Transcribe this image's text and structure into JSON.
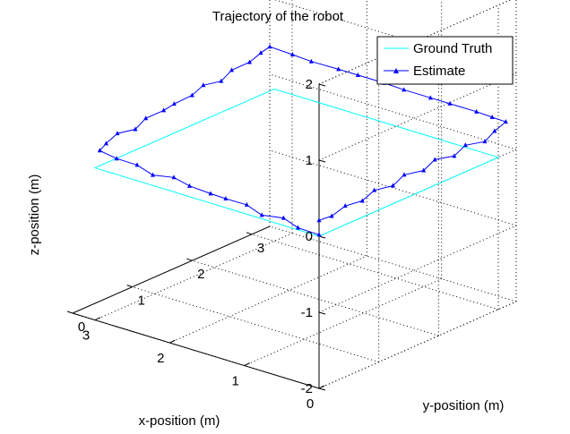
{
  "chart_data": {
    "type": "line",
    "projection": "3d",
    "title": "Trajectory of the robot",
    "xlabel": "x-position (m)",
    "ylabel": "y-position (m)",
    "zlabel": "z-position (m)",
    "xlim": [
      0,
      3.3
    ],
    "ylim": [
      0,
      3.3
    ],
    "zlim": [
      -2,
      2
    ],
    "xticks": [
      "0",
      "1",
      "2",
      "3"
    ],
    "yticks": [
      "0",
      "1",
      "2",
      "3"
    ],
    "zticks": [
      "-2",
      "-1",
      "0",
      "1",
      "2"
    ],
    "grid": true,
    "legend_position": "top-right",
    "series": [
      {
        "name": "Ground Truth",
        "color": "#00ffff",
        "marker": "none",
        "points": [
          [
            0,
            0,
            0
          ],
          [
            3,
            0,
            0
          ],
          [
            3,
            3,
            0
          ],
          [
            0,
            3,
            0
          ],
          [
            0,
            0,
            0
          ]
        ]
      },
      {
        "name": "Estimate",
        "color": "#0000ff",
        "marker": "triangle",
        "points": [
          [
            0.0,
            0.0,
            0.02
          ],
          [
            0.25,
            -0.04,
            0.05
          ],
          [
            0.5,
            0.03,
            0.08
          ],
          [
            0.75,
            -0.02,
            0.06
          ],
          [
            1.0,
            0.04,
            0.1
          ],
          [
            1.25,
            0.0,
            0.12
          ],
          [
            1.5,
            0.06,
            0.09
          ],
          [
            1.75,
            0.02,
            0.13
          ],
          [
            2.0,
            0.07,
            0.15
          ],
          [
            2.25,
            0.03,
            0.12
          ],
          [
            2.5,
            0.08,
            0.16
          ],
          [
            2.75,
            0.05,
            0.18
          ],
          [
            3.0,
            0.08,
            0.2
          ],
          [
            3.05,
            0.25,
            0.22
          ],
          [
            3.1,
            0.5,
            0.25
          ],
          [
            3.06,
            0.75,
            0.23
          ],
          [
            3.12,
            1.0,
            0.27
          ],
          [
            3.08,
            1.25,
            0.3
          ],
          [
            3.14,
            1.5,
            0.28
          ],
          [
            3.1,
            1.75,
            0.32
          ],
          [
            3.15,
            2.0,
            0.35
          ],
          [
            3.11,
            2.25,
            0.33
          ],
          [
            3.17,
            2.5,
            0.37
          ],
          [
            3.13,
            2.75,
            0.4
          ],
          [
            3.18,
            3.0,
            0.42
          ],
          [
            3.18,
            3.15,
            0.45
          ],
          [
            2.9,
            3.18,
            0.42
          ],
          [
            2.6,
            3.12,
            0.44
          ],
          [
            2.3,
            3.2,
            0.4
          ],
          [
            2.0,
            3.15,
            0.43
          ],
          [
            1.7,
            3.22,
            0.39
          ],
          [
            1.4,
            3.17,
            0.41
          ],
          [
            1.1,
            3.24,
            0.37
          ],
          [
            0.8,
            3.19,
            0.4
          ],
          [
            0.5,
            3.26,
            0.36
          ],
          [
            0.25,
            3.21,
            0.38
          ],
          [
            0.1,
            3.25,
            0.35
          ],
          [
            0.05,
            3.0,
            0.33
          ],
          [
            -0.02,
            2.75,
            0.3
          ],
          [
            0.04,
            2.5,
            0.32
          ],
          [
            -0.01,
            2.25,
            0.28
          ],
          [
            0.05,
            2.0,
            0.3
          ],
          [
            0.0,
            1.75,
            0.26
          ],
          [
            0.06,
            1.5,
            0.27
          ],
          [
            0.01,
            1.25,
            0.23
          ],
          [
            0.06,
            1.0,
            0.24
          ],
          [
            0.02,
            0.75,
            0.2
          ],
          [
            0.05,
            0.5,
            0.21
          ],
          [
            0.03,
            0.25,
            0.17
          ],
          [
            0.04,
            0.05,
            0.18
          ]
        ]
      }
    ]
  }
}
